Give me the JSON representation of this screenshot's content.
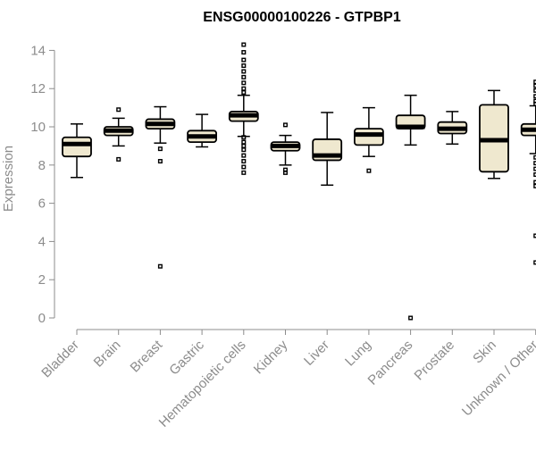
{
  "chart_data": {
    "type": "boxplot",
    "title": "ENSG00000100226 - GTPBP1",
    "ylabel": "Expression",
    "xlabel": "",
    "ylim": [
      0,
      14.3
    ],
    "yticks": [
      0,
      2,
      4,
      6,
      8,
      10,
      12,
      14
    ],
    "box_color": "#efe8cf",
    "categories": [
      "Bladder",
      "Brain",
      "Breast",
      "Gastric",
      "Hematopoietic cells",
      "Kidney",
      "Liver",
      "Lung",
      "Pancreas",
      "Prostate",
      "Skin",
      "Unknown / Other"
    ],
    "boxes": [
      {
        "whislo": 7.35,
        "q1": 8.45,
        "med": 9.1,
        "q3": 9.45,
        "whishi": 10.15,
        "fliers": []
      },
      {
        "whislo": 9.0,
        "q1": 9.55,
        "med": 9.8,
        "q3": 10.0,
        "whishi": 10.45,
        "fliers": [
          8.3,
          10.9
        ]
      },
      {
        "whislo": 9.15,
        "q1": 9.9,
        "med": 10.15,
        "q3": 10.4,
        "whishi": 11.05,
        "fliers": [
          2.7,
          8.2,
          8.85
        ]
      },
      {
        "whislo": 8.95,
        "q1": 9.2,
        "med": 9.5,
        "q3": 9.8,
        "whishi": 10.65,
        "fliers": []
      },
      {
        "whislo": 9.5,
        "q1": 10.3,
        "med": 10.6,
        "q3": 10.8,
        "whishi": 11.65,
        "fliers": [
          7.6,
          7.9,
          8.2,
          8.5,
          8.8,
          9.0,
          9.2,
          9.45,
          11.8,
          12.0,
          12.3,
          12.6,
          12.9,
          13.2,
          13.5,
          13.9,
          14.3
        ]
      },
      {
        "whislo": 8.0,
        "q1": 8.75,
        "med": 9.0,
        "q3": 9.2,
        "whishi": 9.55,
        "fliers": [
          7.6,
          7.75,
          10.1
        ]
      },
      {
        "whislo": 6.95,
        "q1": 8.25,
        "med": 8.5,
        "q3": 9.35,
        "whishi": 10.75,
        "fliers": []
      },
      {
        "whislo": 8.45,
        "q1": 9.05,
        "med": 9.6,
        "q3": 9.9,
        "whishi": 11.0,
        "fliers": [
          7.7
        ]
      },
      {
        "whislo": 9.05,
        "q1": 9.9,
        "med": 10.0,
        "q3": 10.6,
        "whishi": 11.65,
        "fliers": [
          0.0
        ]
      },
      {
        "whislo": 9.1,
        "q1": 9.65,
        "med": 9.9,
        "q3": 10.25,
        "whishi": 10.8,
        "fliers": []
      },
      {
        "whislo": 7.3,
        "q1": 7.65,
        "med": 9.3,
        "q3": 11.15,
        "whishi": 11.9,
        "fliers": []
      },
      {
        "whislo": 8.6,
        "q1": 9.55,
        "med": 9.85,
        "q3": 10.15,
        "whishi": 11.1,
        "fliers": [
          2.9,
          4.3,
          6.9,
          7.1,
          7.5,
          7.8,
          8.1,
          8.4,
          11.2,
          11.35,
          11.6,
          11.9,
          12.15,
          12.35
        ]
      }
    ]
  }
}
